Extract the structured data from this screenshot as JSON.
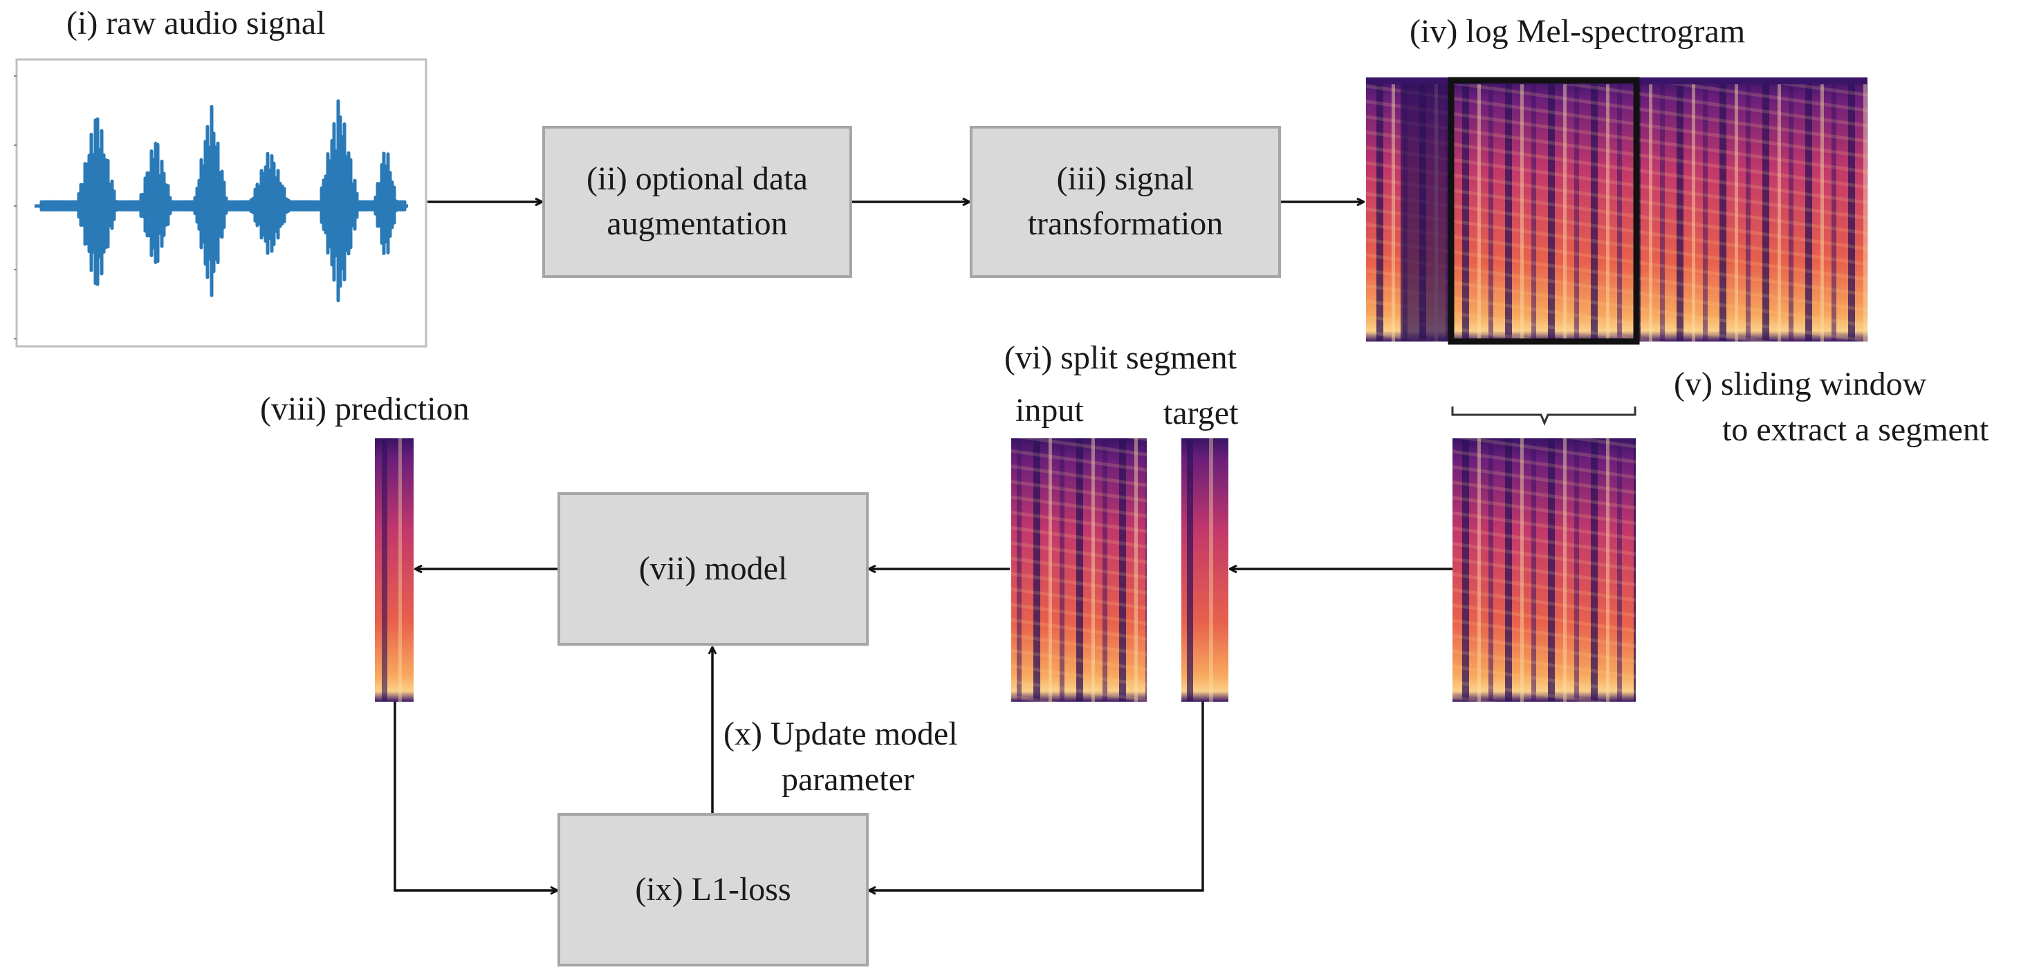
{
  "labels": {
    "raw_audio": "(i) raw audio signal",
    "log_mel": "(iv) log Mel-spectrogram",
    "split_segment": "(vi) split segment",
    "input": "input",
    "target": "target",
    "prediction": "(viii) prediction",
    "sliding_line1": "(v) sliding window",
    "sliding_line2": "to extract a segment",
    "update_line1": "(x) Update model",
    "update_line2": "parameter"
  },
  "boxes": {
    "augmentation": [
      "(ii) optional data",
      "augmentation"
    ],
    "transformation": [
      "(iii) signal",
      "transformation"
    ],
    "model": "(vii) model",
    "loss": "(ix) L1-loss"
  },
  "colors": {
    "waveform": "#2a7ab8",
    "box_fill": "#d9d9d9",
    "box_border": "#a6a6a6",
    "spectrogram_low": "#2c1158",
    "spectrogram_mid": "#c93a6a",
    "spectrogram_high": "#fbd08a",
    "window_frame": "#111111"
  }
}
